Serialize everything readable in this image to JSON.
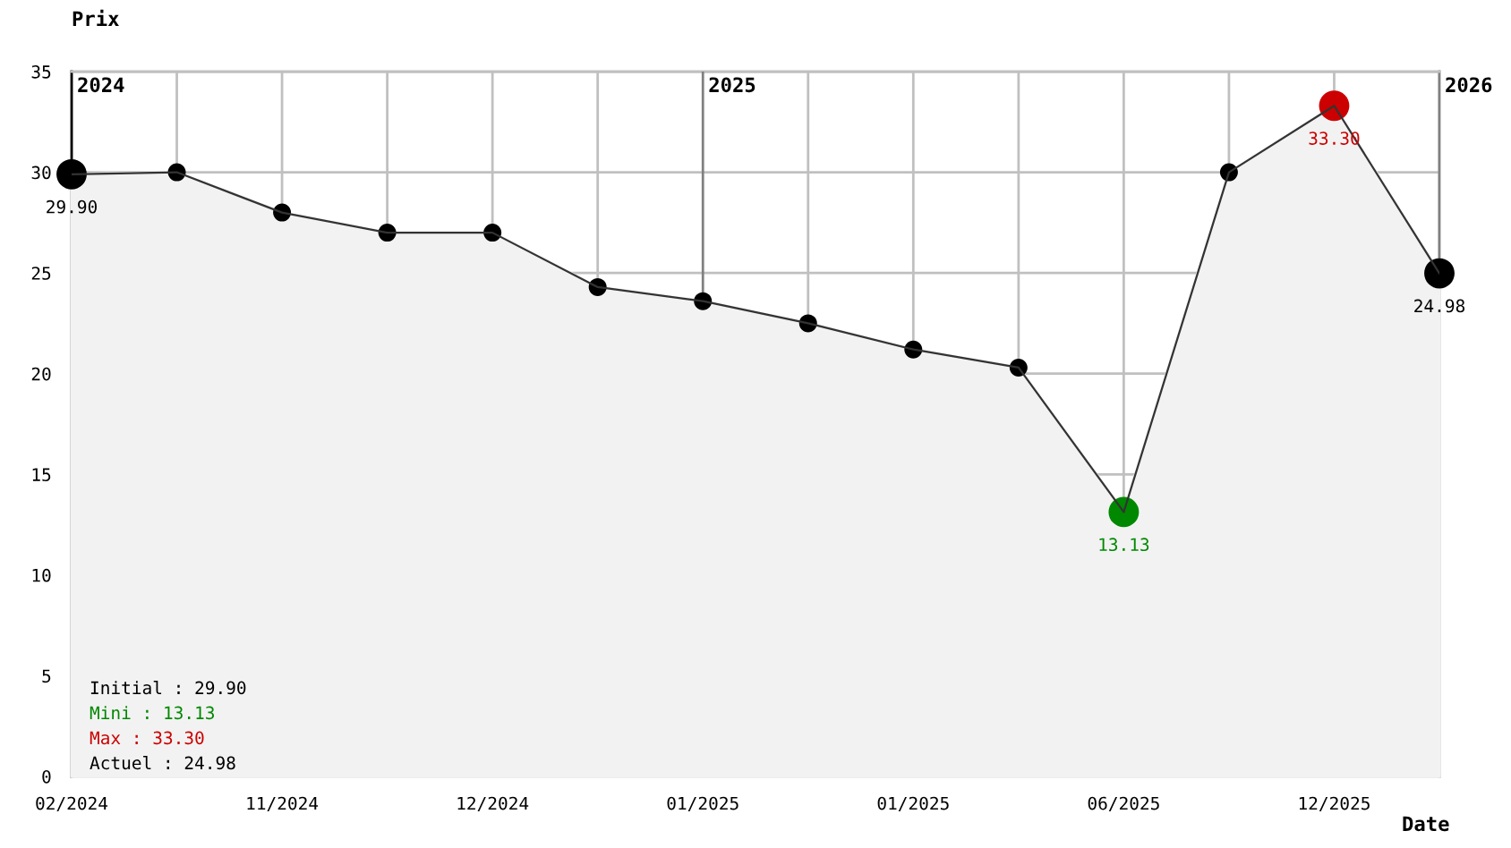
{
  "chart_data": {
    "type": "area",
    "xlabel": "Date",
    "ylabel": "Prix",
    "categories": [
      "02/2024",
      null,
      "11/2024",
      null,
      "12/2024",
      null,
      "01/2025",
      null,
      "01/2025",
      null,
      "06/2025",
      null,
      "12/2025",
      null
    ],
    "series": [
      {
        "color": "#333333",
        "values": [
          29.9,
          30.0,
          28.0,
          27.0,
          27.0,
          24.3,
          23.6,
          22.5,
          21.2,
          20.3,
          13.13,
          30.0,
          33.3,
          24.98
        ]
      },
      {
        "type": "scatter",
        "marker": "circle",
        "color": "#000000",
        "values": [
          null,
          30.0,
          28.0,
          27.0,
          27.0,
          24.3,
          23.6,
          22.5,
          21.2,
          20.3,
          null,
          30.0,
          null,
          null
        ]
      },
      {
        "type": "scatter",
        "marker": "circle",
        "values": [
          29.9,
          null,
          null,
          null,
          null,
          null,
          null,
          null,
          null,
          null,
          13.13,
          null,
          33.3,
          24.98
        ],
        "colors": [
          "#000000",
          null,
          null,
          null,
          null,
          null,
          null,
          null,
          null,
          null,
          "#008800",
          null,
          "#cc0000",
          "#000000"
        ],
        "value_labels": [
          "29.90",
          null,
          null,
          null,
          null,
          null,
          null,
          null,
          null,
          null,
          "13.13",
          null,
          "33.30",
          "24.98"
        ]
      }
    ],
    "ylim": [
      0,
      35
    ],
    "yticks": [
      0,
      5,
      10,
      15,
      20,
      25,
      30,
      35
    ],
    "grid": true,
    "ref_lines": [
      {
        "axis": "x",
        "value": "01/2025",
        "label": "2025",
        "color": "#808080"
      }
    ],
    "annotations": [
      "Initial : 29.90",
      "Mini : 13.13",
      "Max : 33.30",
      "Actuel : 24.98",
      "2024",
      "2026"
    ]
  }
}
